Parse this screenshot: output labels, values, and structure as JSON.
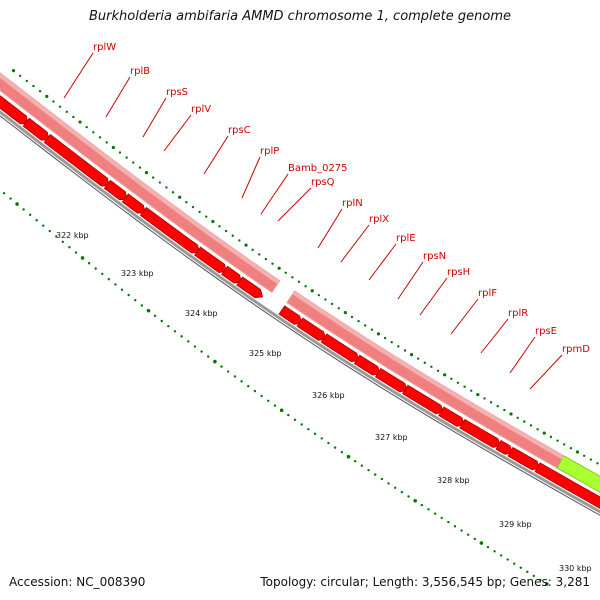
{
  "title": "Burkholderia ambifaria AMMD chromosome 1, complete genome",
  "accession": "Accession: NC_008390",
  "topology": "Topology: circular; Length: 3,556,545 bp; Genes: 3,281",
  "colors": {
    "gene_label": "#cc0000",
    "gene_arrow": "#ff0000",
    "gene_arrow_edge": "#aa0000",
    "cds_band": "#f08080",
    "cds_band_light": "#f6b0b0",
    "other_feature": "#aaff33",
    "backbone": "#888888",
    "tick": "#007700"
  },
  "genes": [
    {
      "name": "rplW"
    },
    {
      "name": "rplB"
    },
    {
      "name": "rpsS"
    },
    {
      "name": "rplV"
    },
    {
      "name": "rpsC"
    },
    {
      "name": "rplP"
    },
    {
      "name": "Bamb_0275"
    },
    {
      "name": "rpsQ"
    },
    {
      "name": "rplN"
    },
    {
      "name": "rplX"
    },
    {
      "name": "rplE"
    },
    {
      "name": "rpsN"
    },
    {
      "name": "rpsH"
    },
    {
      "name": "rplF"
    },
    {
      "name": "rplR"
    },
    {
      "name": "rpsE"
    },
    {
      "name": "rpmD"
    }
  ],
  "scale_labels": [
    "322 kbp",
    "323 kbp",
    "324 kbp",
    "325 kbp",
    "326 kbp",
    "327 kbp",
    "328 kbp",
    "329 kbp",
    "330 kbp"
  ]
}
